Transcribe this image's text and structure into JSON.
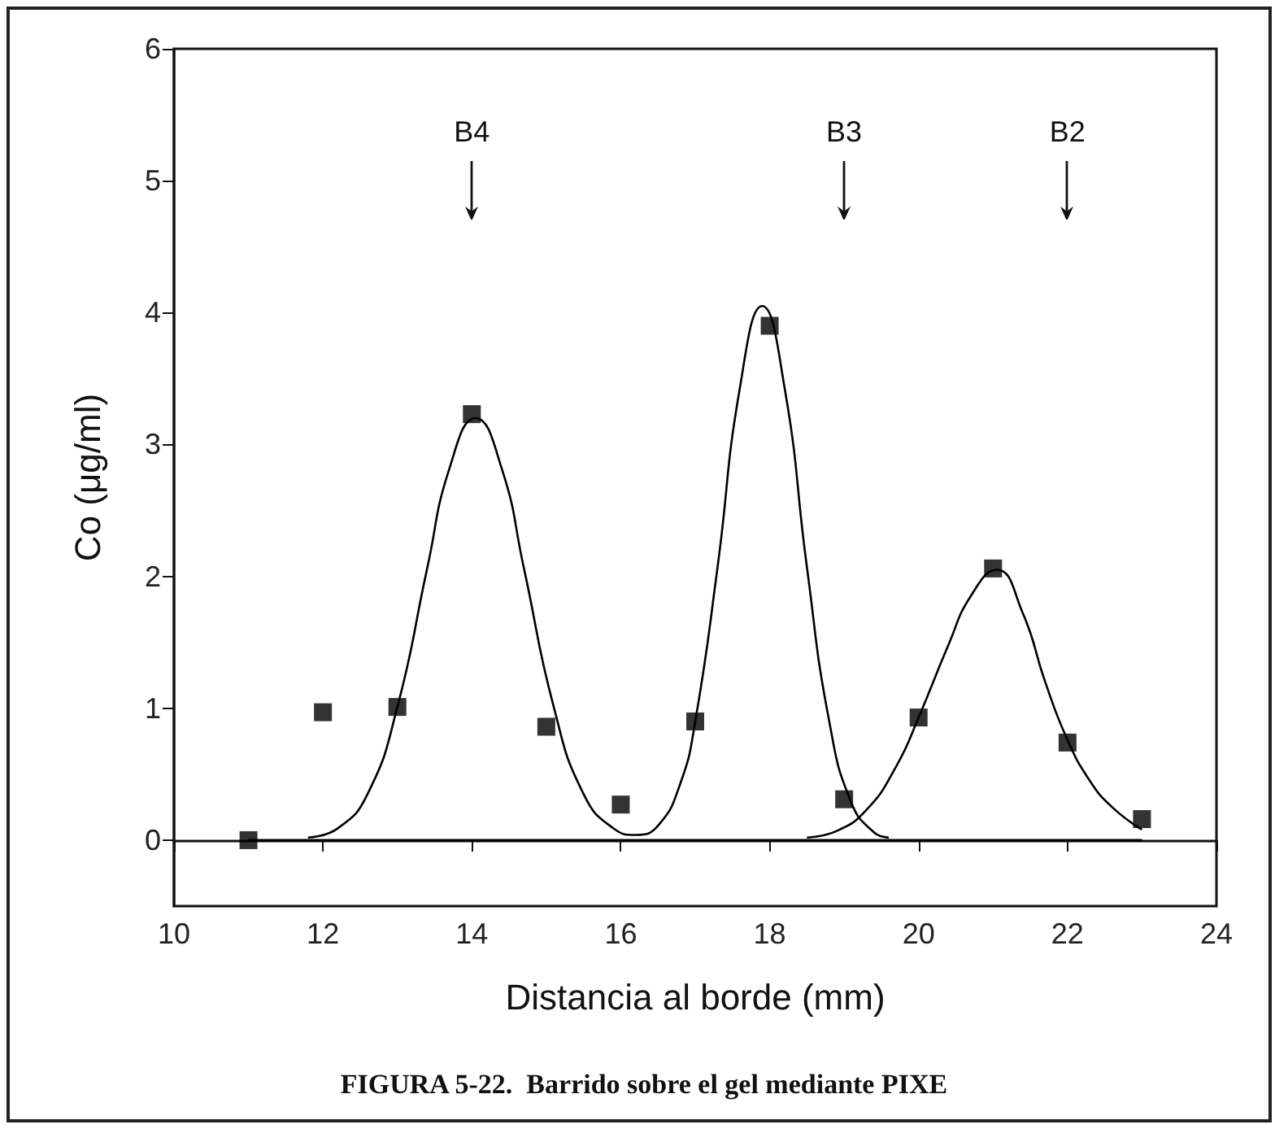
{
  "chart_data": {
    "type": "scatter",
    "title": "FIGURA 5-22.  Barrido sobre el gel mediante PIXE",
    "xlabel": "Distancia al borde (mm)",
    "ylabel": "Co (μg/ml)",
    "xlim": [
      10,
      24
    ],
    "ylim": [
      -0.5,
      6
    ],
    "xticks": [
      10,
      12,
      14,
      16,
      18,
      20,
      22,
      24
    ],
    "yticks": [
      0,
      1,
      2,
      3,
      4,
      5,
      6
    ],
    "annotations": [
      {
        "text": "B4",
        "x": 14
      },
      {
        "text": "B3",
        "x": 19
      },
      {
        "text": "B2",
        "x": 22
      }
    ],
    "series": [
      {
        "type": "line",
        "marker": "none",
        "color": "#000000",
        "x": [
          11,
          23
        ],
        "values": [
          0,
          0
        ]
      },
      {
        "type": "line",
        "marker": "none",
        "color": "#000000",
        "x": [
          11.8,
          12.2,
          12.6,
          13.0,
          13.4,
          13.7,
          14.05,
          14.4,
          14.7,
          15.1,
          15.5,
          15.9,
          16.2,
          16.5,
          16.8,
          17.0,
          17.3,
          17.6,
          17.9,
          18.2,
          18.5,
          18.8,
          19.1,
          19.4,
          19.6
        ],
        "values": [
          0.02,
          0.09,
          0.35,
          1.01,
          2.06,
          2.82,
          3.2,
          2.82,
          2.06,
          1.01,
          0.35,
          0.09,
          0.04,
          0.11,
          0.43,
          0.9,
          2.07,
          3.43,
          4.05,
          3.43,
          2.07,
          0.9,
          0.28,
          0.06,
          0.02
        ]
      },
      {
        "type": "line",
        "marker": "none",
        "color": "#000000",
        "x": [
          18.5,
          18.9,
          19.3,
          19.7,
          20.0,
          20.4,
          20.7,
          21.05,
          21.4,
          21.7,
          22.0,
          22.3,
          22.6,
          23.0
        ],
        "values": [
          0.02,
          0.07,
          0.23,
          0.56,
          0.93,
          1.48,
          1.85,
          2.05,
          1.72,
          1.2,
          0.76,
          0.45,
          0.25,
          0.08
        ]
      },
      {
        "marker": "square",
        "color": "#000000",
        "x": [
          11,
          12,
          13,
          14,
          15,
          16,
          17,
          18,
          19,
          20,
          21,
          22,
          23
        ],
        "values": [
          0,
          0.97,
          1.01,
          3.23,
          0.86,
          0.27,
          0.9,
          3.9,
          0.31,
          0.93,
          2.06,
          0.74,
          0.16
        ]
      }
    ]
  }
}
